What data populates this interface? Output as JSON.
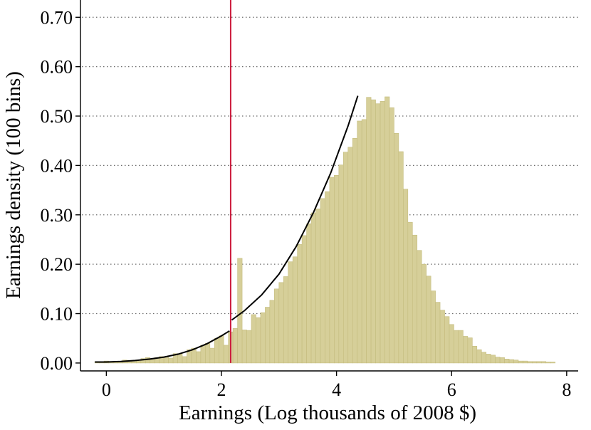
{
  "chart_data": {
    "type": "bar",
    "xlabel": "Earnings (Log thousands of 2008 $)",
    "ylabel": "Earnings density (100 bins)",
    "xlim": [
      -0.45,
      8.2
    ],
    "ylim": [
      -0.016,
      0.735
    ],
    "x_ticks": [
      0,
      2,
      4,
      6,
      8
    ],
    "y_ticks": [
      0.0,
      0.1,
      0.2,
      0.3,
      0.4,
      0.5,
      0.6,
      0.7
    ],
    "x_tick_labels": [
      "0",
      "2",
      "4",
      "6",
      "8"
    ],
    "y_tick_labels": [
      "0.00",
      "0.10",
      "0.20",
      "0.30",
      "0.40",
      "0.50",
      "0.60",
      "0.70"
    ],
    "grid": "horizontal-dotted",
    "colors": {
      "bars": "#d6cf99",
      "bar_edge": "#c4bc7e",
      "vline": "#cc1a3c",
      "fit": "#000000"
    },
    "histogram": {
      "bin_start": -0.2,
      "bin_width": 0.08,
      "values": [
        0.003,
        0.003,
        0.004,
        0.003,
        0.003,
        0.003,
        0.006,
        0.005,
        0.005,
        0.004,
        0.009,
        0.011,
        0.007,
        0.011,
        0.013,
        0.012,
        0.01,
        0.019,
        0.018,
        0.013,
        0.027,
        0.03,
        0.023,
        0.036,
        0.04,
        0.03,
        0.05,
        0.055,
        0.036,
        0.063,
        0.07,
        0.212,
        0.067,
        0.066,
        0.098,
        0.092,
        0.102,
        0.113,
        0.127,
        0.15,
        0.163,
        0.175,
        0.205,
        0.215,
        0.24,
        0.258,
        0.282,
        0.304,
        0.312,
        0.333,
        0.347,
        0.376,
        0.38,
        0.401,
        0.427,
        0.437,
        0.455,
        0.49,
        0.493,
        0.538,
        0.533,
        0.525,
        0.53,
        0.539,
        0.517,
        0.465,
        0.428,
        0.352,
        0.285,
        0.259,
        0.228,
        0.2,
        0.176,
        0.146,
        0.123,
        0.107,
        0.094,
        0.078,
        0.066,
        0.066,
        0.054,
        0.051,
        0.034,
        0.027,
        0.022,
        0.018,
        0.016,
        0.012,
        0.011,
        0.008,
        0.007,
        0.006,
        0.004,
        0.004,
        0.003,
        0.003,
        0.003,
        0.003,
        0.002,
        0.002
      ]
    },
    "vline": {
      "x": 2.16
    },
    "fit_curves": [
      {
        "x": [
          -0.2,
          0.0,
          0.25,
          0.5,
          0.75,
          1.0,
          1.25,
          1.5,
          1.75,
          2.0,
          2.14
        ],
        "y": [
          0.002,
          0.002,
          0.003,
          0.005,
          0.008,
          0.012,
          0.018,
          0.027,
          0.039,
          0.055,
          0.065
        ]
      },
      {
        "x": [
          2.18,
          2.4,
          2.7,
          3.0,
          3.3,
          3.6,
          3.9,
          4.2,
          4.37
        ],
        "y": [
          0.087,
          0.106,
          0.138,
          0.18,
          0.236,
          0.305,
          0.385,
          0.48,
          0.541
        ]
      }
    ]
  }
}
